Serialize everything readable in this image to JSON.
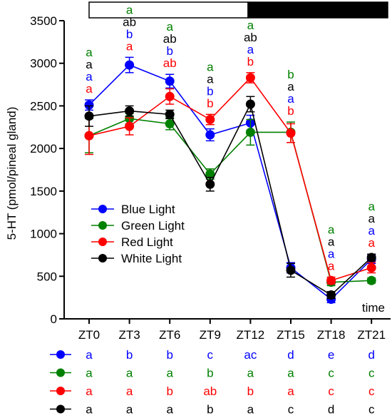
{
  "chart_data": {
    "type": "line",
    "categories": [
      "ZT0",
      "ZT3",
      "ZT6",
      "ZT9",
      "ZT12",
      "ZT15",
      "ZT18",
      "ZT21"
    ],
    "ylabel": "5-HT (pmol/pineal gland)",
    "xlabel": "time",
    "ylim": [
      0,
      3500
    ],
    "yticks": [
      0,
      500,
      1000,
      1500,
      2000,
      2500,
      3000,
      3500
    ],
    "light_dark_bar": [
      "light",
      "dark"
    ],
    "legend_position": "center-left",
    "series": [
      {
        "name": "Blue Light",
        "color": "#0000ff",
        "values": [
          2510,
          2980,
          2790,
          2160,
          2300,
          600,
          230,
          700
        ],
        "errors": [
          60,
          90,
          80,
          70,
          90,
          60,
          40,
          50
        ],
        "point_letters": [
          "a",
          "b",
          "b",
          "b",
          "a",
          "a",
          "a",
          "a"
        ],
        "table_letters": [
          "a",
          "b",
          "b",
          "c",
          "ac",
          "d",
          "e",
          "d"
        ]
      },
      {
        "name": "Green Light",
        "color": "#008000",
        "values": [
          2150,
          2350,
          2290,
          1700,
          2190,
          2190,
          430,
          450
        ],
        "errors": [
          200,
          60,
          70,
          60,
          150,
          120,
          40,
          30
        ],
        "point_letters": [
          "a",
          "a",
          "a",
          "a",
          "a",
          "b",
          "a",
          "a"
        ],
        "table_letters": [
          "a",
          "a",
          "a",
          "b",
          "a",
          "a",
          "c",
          "c"
        ]
      },
      {
        "name": "Red Light",
        "color": "#ff0000",
        "values": [
          2150,
          2260,
          2610,
          2340,
          2830,
          2180,
          450,
          600
        ],
        "errors": [
          220,
          100,
          90,
          60,
          60,
          110,
          40,
          60
        ],
        "point_letters": [
          "a",
          "a",
          "ab",
          "b",
          "b",
          "b",
          "a",
          "a"
        ],
        "table_letters": [
          "a",
          "a",
          "b",
          "ab",
          "b",
          "a",
          "c",
          "c"
        ]
      },
      {
        "name": "White Light",
        "color": "#000000",
        "values": [
          2380,
          2440,
          2400,
          1580,
          2520,
          570,
          280,
          720
        ],
        "errors": [
          120,
          60,
          50,
          80,
          90,
          80,
          40,
          40
        ],
        "point_letters": [
          "a",
          "ab",
          "ab",
          "a",
          "ab",
          "a",
          "a",
          "a"
        ],
        "table_letters": [
          "a",
          "a",
          "a",
          "b",
          "a",
          "c",
          "d",
          "c"
        ]
      }
    ]
  }
}
